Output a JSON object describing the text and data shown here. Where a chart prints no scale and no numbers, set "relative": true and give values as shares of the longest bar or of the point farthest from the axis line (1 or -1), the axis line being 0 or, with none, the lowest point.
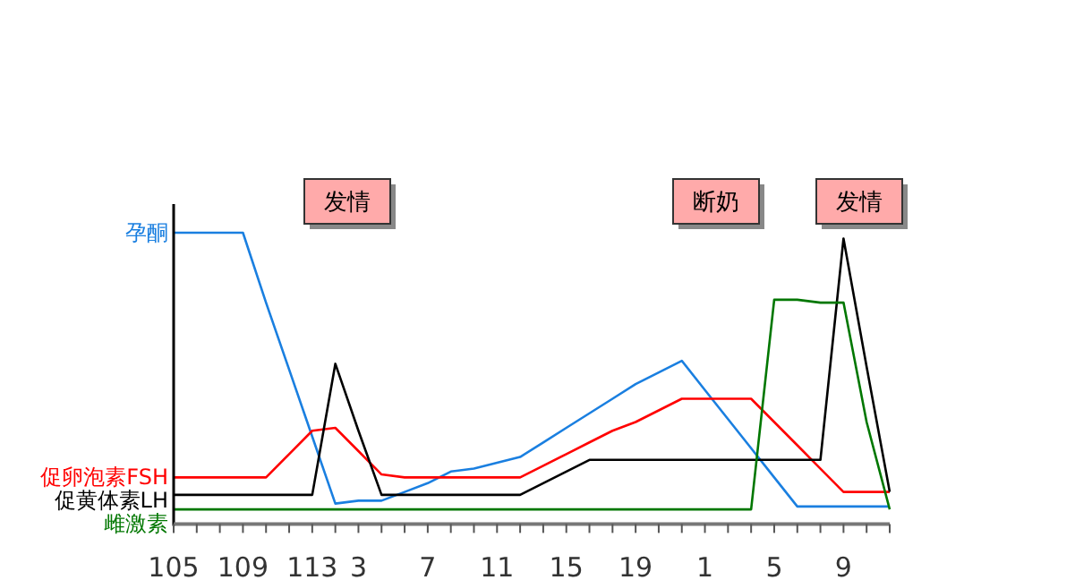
{
  "chart_data": {
    "type": "line",
    "relative": true,
    "grid": false,
    "legend": false,
    "categories": [
      "105",
      null,
      null,
      "109",
      null,
      null,
      "113",
      null,
      "3",
      null,
      null,
      "7",
      null,
      null,
      "11",
      null,
      null,
      "15",
      null,
      null,
      "19",
      null,
      null,
      "1",
      null,
      null,
      "5",
      null,
      null,
      "9",
      null,
      null
    ],
    "series": [
      {
        "name": "孕酮",
        "color": "#1a7fe0",
        "values": [
          1.0,
          1.0,
          1.0,
          1.0,
          0.76,
          0.53,
          0.3,
          0.07,
          0.08,
          0.08,
          0.11,
          0.14,
          0.18,
          0.19,
          0.21,
          0.23,
          0.28,
          0.33,
          0.38,
          0.43,
          0.48,
          0.52,
          0.56,
          0.46,
          0.36,
          0.26,
          0.16,
          0.06,
          0.06,
          0.06,
          0.06,
          0.06
        ]
      },
      {
        "name": "促卵泡素FSH",
        "color": "#ff0000",
        "values": [
          0.16,
          0.16,
          0.16,
          0.16,
          0.16,
          0.24,
          0.32,
          0.33,
          0.25,
          0.17,
          0.16,
          0.16,
          0.16,
          0.16,
          0.16,
          0.16,
          0.2,
          0.24,
          0.28,
          0.32,
          0.35,
          0.39,
          0.43,
          0.43,
          0.43,
          0.43,
          0.35,
          0.27,
          0.19,
          0.11,
          0.11,
          0.11
        ]
      },
      {
        "name": "促黄体素LH",
        "color": "#000000",
        "values": [
          0.1,
          0.1,
          0.1,
          0.1,
          0.1,
          0.1,
          0.1,
          0.55,
          0.32,
          0.1,
          0.1,
          0.1,
          0.1,
          0.1,
          0.1,
          0.1,
          0.14,
          0.18,
          0.22,
          0.22,
          0.22,
          0.22,
          0.22,
          0.22,
          0.22,
          0.22,
          0.22,
          0.22,
          0.22,
          0.98,
          0.54,
          0.11
        ]
      },
      {
        "name": "雌激素",
        "color": "#007700",
        "values": [
          0.05,
          0.05,
          0.05,
          0.05,
          0.05,
          0.05,
          0.05,
          0.05,
          0.05,
          0.05,
          0.05,
          0.05,
          0.05,
          0.05,
          0.05,
          0.05,
          0.05,
          0.05,
          0.05,
          0.05,
          0.05,
          0.05,
          0.05,
          0.05,
          0.05,
          0.05,
          0.77,
          0.77,
          0.76,
          0.76,
          0.35,
          0.05
        ]
      }
    ],
    "annotations": [
      "发情",
      "断奶",
      "发情"
    ]
  }
}
